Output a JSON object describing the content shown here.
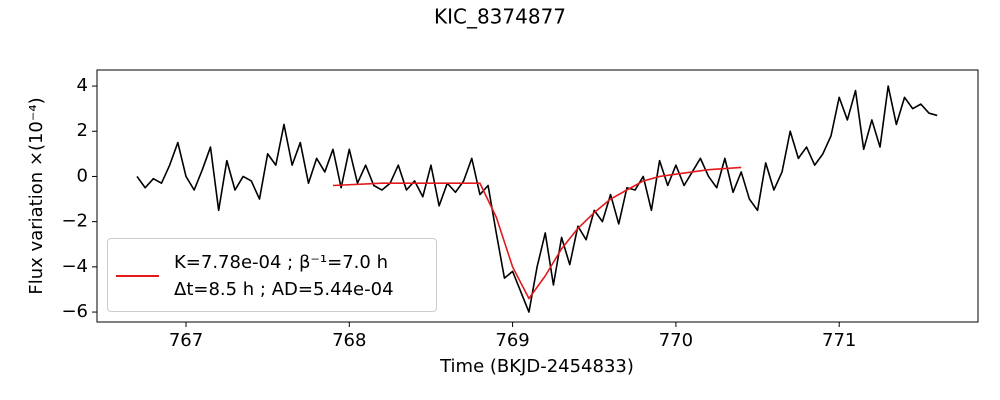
{
  "chart_data": {
    "type": "line",
    "title": "KIC_8374877",
    "x_label": "Time (BKJD-2454833)",
    "y_label": "Flux variation ×(10⁻⁴)",
    "xlim": [
      766.455,
      771.85
    ],
    "ylim": [
      -6.44,
      4.71
    ],
    "xticks": [
      767,
      768,
      769,
      770,
      771
    ],
    "yticks": [
      {
        "value": -6,
        "label": "−6"
      },
      {
        "value": -4,
        "label": "−4"
      },
      {
        "value": -2,
        "label": "−2"
      },
      0,
      2,
      4
    ],
    "series": [
      {
        "color": "#000000",
        "x": [
          766.7,
          766.75,
          766.8,
          766.85,
          766.9,
          766.95,
          767,
          767.05,
          767.1,
          767.15,
          767.2,
          767.25,
          767.3,
          767.35,
          767.4,
          767.45,
          767.5,
          767.55,
          767.6,
          767.65,
          767.7,
          767.75,
          767.8,
          767.85,
          767.9,
          767.95,
          768,
          768.05,
          768.1,
          768.15,
          768.2,
          768.25,
          768.3,
          768.35,
          768.4,
          768.45,
          768.5,
          768.55,
          768.6,
          768.65,
          768.7,
          768.75,
          768.8,
          768.85,
          768.9,
          768.95,
          769,
          769.05,
          769.1,
          769.15,
          769.2,
          769.25,
          769.3,
          769.35,
          769.4,
          769.45,
          769.5,
          769.55,
          769.6,
          769.65,
          769.7,
          769.75,
          769.8,
          769.85,
          769.9,
          769.95,
          770,
          770.05,
          770.1,
          770.15,
          770.2,
          770.25,
          770.3,
          770.35,
          770.4,
          770.45,
          770.5,
          770.55,
          770.6,
          770.65,
          770.7,
          770.75,
          770.8,
          770.85,
          770.9,
          770.95,
          771,
          771.05,
          771.1,
          771.15,
          771.2,
          771.25,
          771.3,
          771.35,
          771.4,
          771.45,
          771.5,
          771.55,
          771.6
        ],
        "values": [
          0.0,
          -0.5,
          -0.1,
          -0.3,
          0.5,
          1.5,
          0.0,
          -0.6,
          0.3,
          1.3,
          -1.5,
          0.7,
          -0.6,
          0.0,
          -0.2,
          -1.0,
          1.0,
          0.5,
          2.3,
          0.5,
          1.5,
          -0.3,
          0.8,
          0.2,
          1.2,
          -0.5,
          1.2,
          -0.3,
          0.5,
          -0.4,
          -0.6,
          -0.3,
          0.5,
          -0.6,
          -0.2,
          -0.9,
          0.5,
          -1.3,
          -0.3,
          -0.7,
          -0.2,
          0.8,
          -0.8,
          -0.4,
          -2.5,
          -4.5,
          -4.2,
          -5.1,
          -6.0,
          -4.0,
          -2.5,
          -4.8,
          -2.7,
          -3.9,
          -2.2,
          -2.8,
          -1.5,
          -2.0,
          -0.8,
          -2.1,
          -0.5,
          -0.6,
          0.0,
          -1.5,
          0.7,
          -0.4,
          0.5,
          -0.4,
          0.2,
          0.8,
          0.0,
          -0.5,
          0.8,
          -0.7,
          0.2,
          -1.0,
          -1.5,
          0.6,
          -0.6,
          0.2,
          2.0,
          0.8,
          1.3,
          0.5,
          1.0,
          1.8,
          3.5,
          2.5,
          3.8,
          1.2,
          2.5,
          1.3,
          4.0,
          2.3,
          3.5,
          3.0,
          3.2,
          2.8,
          2.7
        ]
      },
      {
        "name": "K=7.78e-04 ; β⁻¹=7.0 h\nΔt=8.5 h ; AD=5.44e-04",
        "color": "#e31a1c",
        "x": [
          767.9,
          768.2,
          768.5,
          768.8,
          768.9,
          769.0,
          769.1,
          769.2,
          769.3,
          769.4,
          769.5,
          769.6,
          769.7,
          769.8,
          769.9,
          770.0,
          770.2,
          770.4
        ],
        "values": [
          -0.4,
          -0.3,
          -0.3,
          -0.3,
          -1.8,
          -4.0,
          -5.4,
          -4.4,
          -3.2,
          -2.3,
          -1.6,
          -1.0,
          -0.6,
          -0.2,
          0.0,
          0.1,
          0.3,
          0.4
        ]
      }
    ]
  }
}
